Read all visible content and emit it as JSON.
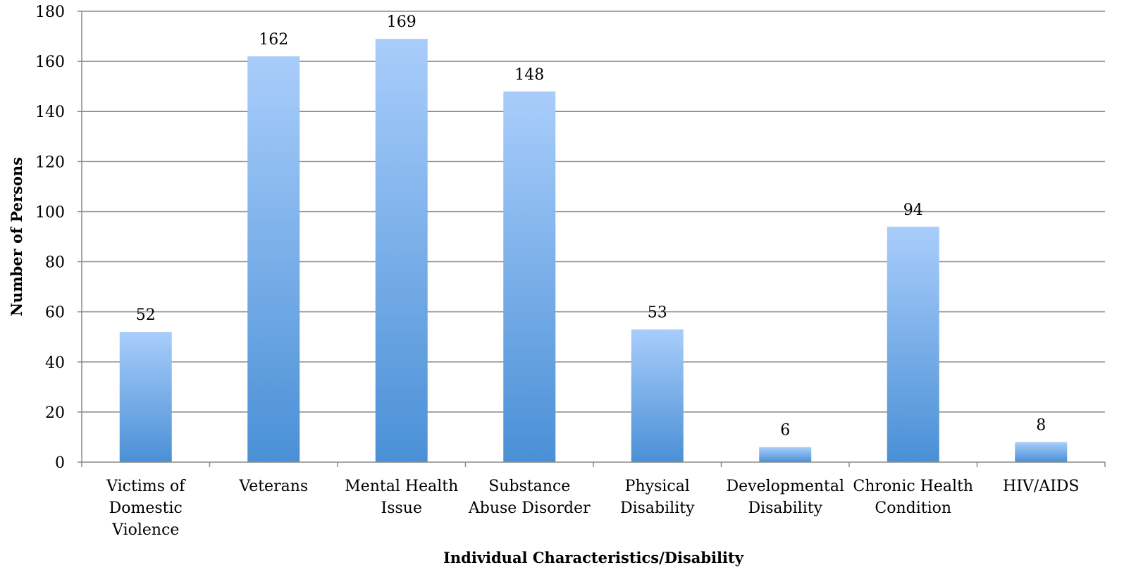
{
  "chart_data": {
    "type": "bar",
    "title": "",
    "xlabel": "Individual Characteristics/Disability",
    "ylabel": "Number of Persons",
    "ylim": [
      0,
      180
    ],
    "yticks": [
      0,
      20,
      40,
      60,
      80,
      100,
      120,
      140,
      160,
      180
    ],
    "grid": true,
    "legend": "none",
    "categories": [
      [
        "Victims of",
        "Domestic",
        "Violence"
      ],
      [
        "Veterans"
      ],
      [
        "Mental Health",
        "Issue"
      ],
      [
        "Substance",
        "Abuse Disorder"
      ],
      [
        "Physical",
        "Disability"
      ],
      [
        "Developmental",
        "Disability"
      ],
      [
        "Chronic Health",
        "Condition"
      ],
      [
        "HIV/AIDS"
      ]
    ],
    "values": [
      52,
      162,
      169,
      148,
      53,
      6,
      94,
      8
    ],
    "colors": {
      "bar_top": "#a9cdfb",
      "bar_bottom": "#4a90d6",
      "grid": "#888888",
      "axis": "#888888"
    }
  }
}
